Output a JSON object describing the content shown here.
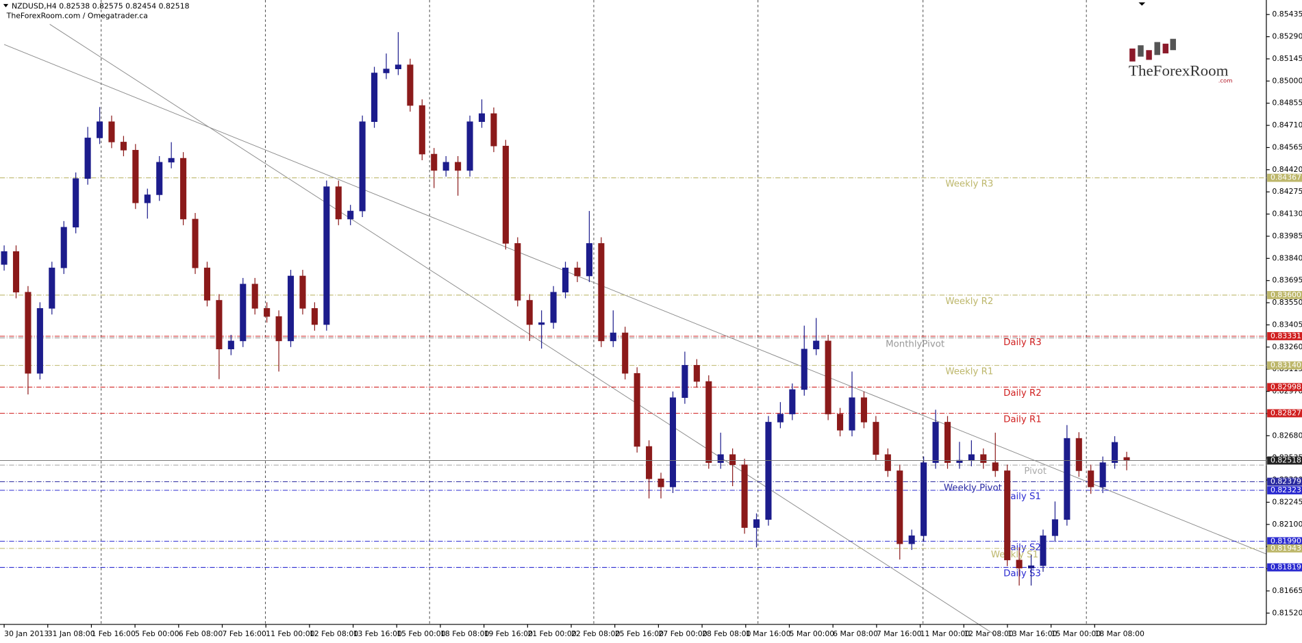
{
  "chart_data": {
    "type": "candlestick",
    "header": "NZDUSD,H4  0.82538 0.82575 0.82454 0.82518",
    "subheader": "TheForexRoom.com / Omegatrader.ca",
    "logo": "TheForexRoom",
    "logo_suffix": ".com",
    "up_color": "#1c1c8c",
    "down_color": "#8b1a1a",
    "ohlc": [
      [
        0.838,
        0.83925,
        0.8376,
        0.83885
      ],
      [
        0.83885,
        0.83925,
        0.83579,
        0.83619
      ],
      [
        0.83619,
        0.83659,
        0.8295,
        0.83088
      ],
      [
        0.83088,
        0.83553,
        0.83048,
        0.83513
      ],
      [
        0.83513,
        0.83818,
        0.83473,
        0.83778
      ],
      [
        0.83778,
        0.84084,
        0.83738,
        0.84044
      ],
      [
        0.84044,
        0.84402,
        0.84004,
        0.84362
      ],
      [
        0.84362,
        0.847,
        0.84322,
        0.84628
      ],
      [
        0.84628,
        0.8483,
        0.84588,
        0.84734
      ],
      [
        0.84734,
        0.84774,
        0.84561,
        0.84601
      ],
      [
        0.84601,
        0.84641,
        0.84508,
        0.84548
      ],
      [
        0.84548,
        0.84588,
        0.84163,
        0.84203
      ],
      [
        0.84203,
        0.84296,
        0.841,
        0.84256
      ],
      [
        0.84256,
        0.84509,
        0.84216,
        0.84469
      ],
      [
        0.84469,
        0.846,
        0.84429,
        0.84495
      ],
      [
        0.84495,
        0.84535,
        0.84057,
        0.84097
      ],
      [
        0.84097,
        0.84137,
        0.83738,
        0.83778
      ],
      [
        0.83778,
        0.83818,
        0.83526,
        0.83566
      ],
      [
        0.83566,
        0.83606,
        0.8305,
        0.83247
      ],
      [
        0.83247,
        0.8334,
        0.83207,
        0.833
      ],
      [
        0.833,
        0.83712,
        0.8326,
        0.83672
      ],
      [
        0.83672,
        0.83712,
        0.83473,
        0.83513
      ],
      [
        0.83513,
        0.83553,
        0.8342,
        0.8346
      ],
      [
        0.8346,
        0.835,
        0.831,
        0.833
      ],
      [
        0.833,
        0.83765,
        0.8326,
        0.83725
      ],
      [
        0.83725,
        0.83765,
        0.83473,
        0.83513
      ],
      [
        0.83513,
        0.83553,
        0.83367,
        0.83407
      ],
      [
        0.83407,
        0.84349,
        0.83367,
        0.84309
      ],
      [
        0.84309,
        0.84349,
        0.84057,
        0.84097
      ],
      [
        0.84097,
        0.8419,
        0.84057,
        0.8415
      ],
      [
        0.8415,
        0.84774,
        0.8411,
        0.84734
      ],
      [
        0.84734,
        0.85093,
        0.84694,
        0.85053
      ],
      [
        0.85053,
        0.8518,
        0.85013,
        0.85079
      ],
      [
        0.85079,
        0.8532,
        0.85039,
        0.85106
      ],
      [
        0.85106,
        0.85146,
        0.848,
        0.8484
      ],
      [
        0.8484,
        0.8488,
        0.84482,
        0.84522
      ],
      [
        0.84522,
        0.84562,
        0.843,
        0.84415
      ],
      [
        0.84415,
        0.84509,
        0.84375,
        0.84469
      ],
      [
        0.84469,
        0.84509,
        0.8425,
        0.84415
      ],
      [
        0.84415,
        0.84774,
        0.84375,
        0.84734
      ],
      [
        0.84734,
        0.8488,
        0.84694,
        0.84787
      ],
      [
        0.84787,
        0.84827,
        0.84535,
        0.84575
      ],
      [
        0.84575,
        0.84615,
        0.83898,
        0.83938
      ],
      [
        0.83938,
        0.83978,
        0.83526,
        0.83566
      ],
      [
        0.83566,
        0.83606,
        0.833,
        0.83407
      ],
      [
        0.83407,
        0.835,
        0.8325,
        0.8342
      ],
      [
        0.8342,
        0.83659,
        0.8338,
        0.83619
      ],
      [
        0.83619,
        0.83818,
        0.83579,
        0.83778
      ],
      [
        0.83778,
        0.83818,
        0.83685,
        0.83725
      ],
      [
        0.83725,
        0.8415,
        0.83685,
        0.83938
      ],
      [
        0.83938,
        0.83978,
        0.8326,
        0.833
      ],
      [
        0.833,
        0.835,
        0.8326,
        0.83353
      ],
      [
        0.83353,
        0.83393,
        0.83048,
        0.83088
      ],
      [
        0.83088,
        0.83128,
        0.8257,
        0.8261
      ],
      [
        0.8261,
        0.8265,
        0.8227,
        0.82398
      ],
      [
        0.82398,
        0.82438,
        0.8227,
        0.82345
      ],
      [
        0.82345,
        0.82969,
        0.82305,
        0.82929
      ],
      [
        0.82929,
        0.8323,
        0.82889,
        0.83141
      ],
      [
        0.83141,
        0.83181,
        0.82995,
        0.83035
      ],
      [
        0.83035,
        0.83075,
        0.82464,
        0.82504
      ],
      [
        0.82504,
        0.827,
        0.82464,
        0.82557
      ],
      [
        0.82557,
        0.82597,
        0.8235,
        0.8249
      ],
      [
        0.8249,
        0.8253,
        0.82039,
        0.82079
      ],
      [
        0.82079,
        0.82172,
        0.8195,
        0.82132
      ],
      [
        0.82132,
        0.82809,
        0.82092,
        0.82769
      ],
      [
        0.82769,
        0.829,
        0.82729,
        0.82822
      ],
      [
        0.82822,
        0.83022,
        0.82782,
        0.82982
      ],
      [
        0.82982,
        0.834,
        0.82942,
        0.83247
      ],
      [
        0.83247,
        0.8345,
        0.83207,
        0.833
      ],
      [
        0.833,
        0.8334,
        0.82782,
        0.82822
      ],
      [
        0.82822,
        0.82862,
        0.82676,
        0.82716
      ],
      [
        0.82716,
        0.831,
        0.82676,
        0.82929
      ],
      [
        0.82929,
        0.82969,
        0.82729,
        0.82769
      ],
      [
        0.82769,
        0.82809,
        0.82517,
        0.82557
      ],
      [
        0.82557,
        0.82597,
        0.82411,
        0.82451
      ],
      [
        0.82451,
        0.82491,
        0.8187,
        0.81973
      ],
      [
        0.81973,
        0.82066,
        0.81933,
        0.82026
      ],
      [
        0.82026,
        0.82544,
        0.81986,
        0.82504
      ],
      [
        0.82504,
        0.8285,
        0.82464,
        0.82769
      ],
      [
        0.82769,
        0.82809,
        0.82464,
        0.82504
      ],
      [
        0.82504,
        0.8264,
        0.82464,
        0.8252
      ],
      [
        0.8252,
        0.8265,
        0.8248,
        0.82557
      ],
      [
        0.82557,
        0.82597,
        0.82464,
        0.82504
      ],
      [
        0.82504,
        0.827,
        0.82411,
        0.82451
      ],
      [
        0.82451,
        0.82491,
        0.81827,
        0.81867
      ],
      [
        0.81867,
        0.8195,
        0.817,
        0.81814
      ],
      [
        0.81814,
        0.819,
        0.817,
        0.8183
      ],
      [
        0.8183,
        0.82066,
        0.8179,
        0.82026
      ],
      [
        0.82026,
        0.8225,
        0.81986,
        0.82132
      ],
      [
        0.82132,
        0.8275,
        0.82092,
        0.82663
      ],
      [
        0.82663,
        0.82703,
        0.82411,
        0.82451
      ],
      [
        0.82451,
        0.82491,
        0.823,
        0.82345
      ],
      [
        0.82345,
        0.82544,
        0.82305,
        0.82504
      ],
      [
        0.82504,
        0.82677,
        0.82464,
        0.82637
      ],
      [
        0.82538,
        0.82575,
        0.82454,
        0.82518
      ]
    ],
    "last_price_label": "0.82518",
    "ylim": [
      0.81446,
      0.8553
    ],
    "yticks": [
      {
        "value": 0.8152,
        "label": "0.81520"
      },
      {
        "value": 0.81665,
        "label": "0.81665"
      },
      {
        "value": 0.8181,
        "label": "0.81810"
      },
      {
        "value": 0.81955,
        "label": "0.81955"
      },
      {
        "value": 0.821,
        "label": "0.82100"
      },
      {
        "value": 0.82245,
        "label": "0.82245"
      },
      {
        "value": 0.8239,
        "label": "0.82390"
      },
      {
        "value": 0.82535,
        "label": "0.82535"
      },
      {
        "value": 0.8268,
        "label": "0.82680"
      },
      {
        "value": 0.82825,
        "label": "0.82825"
      },
      {
        "value": 0.8297,
        "label": "0.82970"
      },
      {
        "value": 0.83115,
        "label": "0.83115"
      },
      {
        "value": 0.8326,
        "label": "0.83260"
      },
      {
        "value": 0.83405,
        "label": "0.83405"
      },
      {
        "value": 0.8355,
        "label": "0.83550"
      },
      {
        "value": 0.83695,
        "label": "0.83695"
      },
      {
        "value": 0.8384,
        "label": "0.83840"
      },
      {
        "value": 0.83985,
        "label": "0.83985"
      },
      {
        "value": 0.8413,
        "label": "0.84130"
      },
      {
        "value": 0.84275,
        "label": "0.84275"
      },
      {
        "value": 0.8442,
        "label": "0.84420"
      },
      {
        "value": 0.84565,
        "label": "0.84565"
      },
      {
        "value": 0.8471,
        "label": "0.84710"
      },
      {
        "value": 0.84855,
        "label": "0.84855"
      },
      {
        "value": 0.85,
        "label": "0.85000"
      },
      {
        "value": 0.85145,
        "label": "0.85145"
      },
      {
        "value": 0.8529,
        "label": "0.85290"
      },
      {
        "value": 0.85435,
        "label": "0.85435"
      }
    ],
    "x_labels": [
      "30 Jan 2013",
      "31 Jan 08:00",
      "1 Feb 16:00",
      "5 Feb 00:00",
      "6 Feb 08:00",
      "7 Feb 16:00",
      "11 Feb 00:00",
      "12 Feb 08:00",
      "13 Feb 16:00",
      "15 Feb 00:00",
      "18 Feb 08:00",
      "19 Feb 16:00",
      "21 Feb 00:00",
      "22 Feb 08:00",
      "25 Feb 16:00",
      "27 Feb 00:00",
      "28 Feb 08:00",
      "1 Mar 16:00",
      "5 Mar 00:00",
      "6 Mar 08:00",
      "7 Mar 16:00",
      "11 Mar 00:00",
      "12 Mar 08:00",
      "13 Mar 16:00",
      "15 Mar 00:00",
      "18 Mar 08:00"
    ],
    "levels": [
      {
        "name": "Weekly R3",
        "value": 0.84367,
        "value_label": "0.84367",
        "color": "#bdb76b"
      },
      {
        "name": "Weekly R2",
        "value": 0.836,
        "value_label": "0.83600",
        "color": "#bdb76b"
      },
      {
        "name": "Daily R3",
        "value": 0.83331,
        "value_label": "0.83331",
        "color": "#d02020"
      },
      {
        "name": "MonthlyPivot",
        "value": 0.8332,
        "color": "#999999"
      },
      {
        "name": "Weekly R1",
        "value": 0.8314,
        "value_label": "0.83140",
        "color": "#bdb76b"
      },
      {
        "name": "Daily R2",
        "value": 0.82998,
        "value_label": "0.82998",
        "color": "#d02020"
      },
      {
        "name": "Daily R1",
        "value": 0.82827,
        "value_label": "0.82827",
        "color": "#d02020"
      },
      {
        "name": "Pivot",
        "value": 0.82488,
        "color": "#aaaaaa"
      },
      {
        "name": "Weekly Pivot",
        "value": 0.82379,
        "value_label": "0.82379",
        "color": "#2a2aa0"
      },
      {
        "name": "Daily S1",
        "value": 0.82323,
        "value_label": "0.82323",
        "color": "#2a2ad0"
      },
      {
        "name": "Daily S2",
        "value": 0.8199,
        "value_label": "0.81990",
        "color": "#2a2ad0"
      },
      {
        "name": "Weekly S1",
        "value": 0.81943,
        "value_label": "0.81943",
        "color": "#bdb76b"
      },
      {
        "name": "Daily S3",
        "value": 0.81819,
        "value_label": "0.81819",
        "color": "#2a2ad0"
      }
    ]
  }
}
